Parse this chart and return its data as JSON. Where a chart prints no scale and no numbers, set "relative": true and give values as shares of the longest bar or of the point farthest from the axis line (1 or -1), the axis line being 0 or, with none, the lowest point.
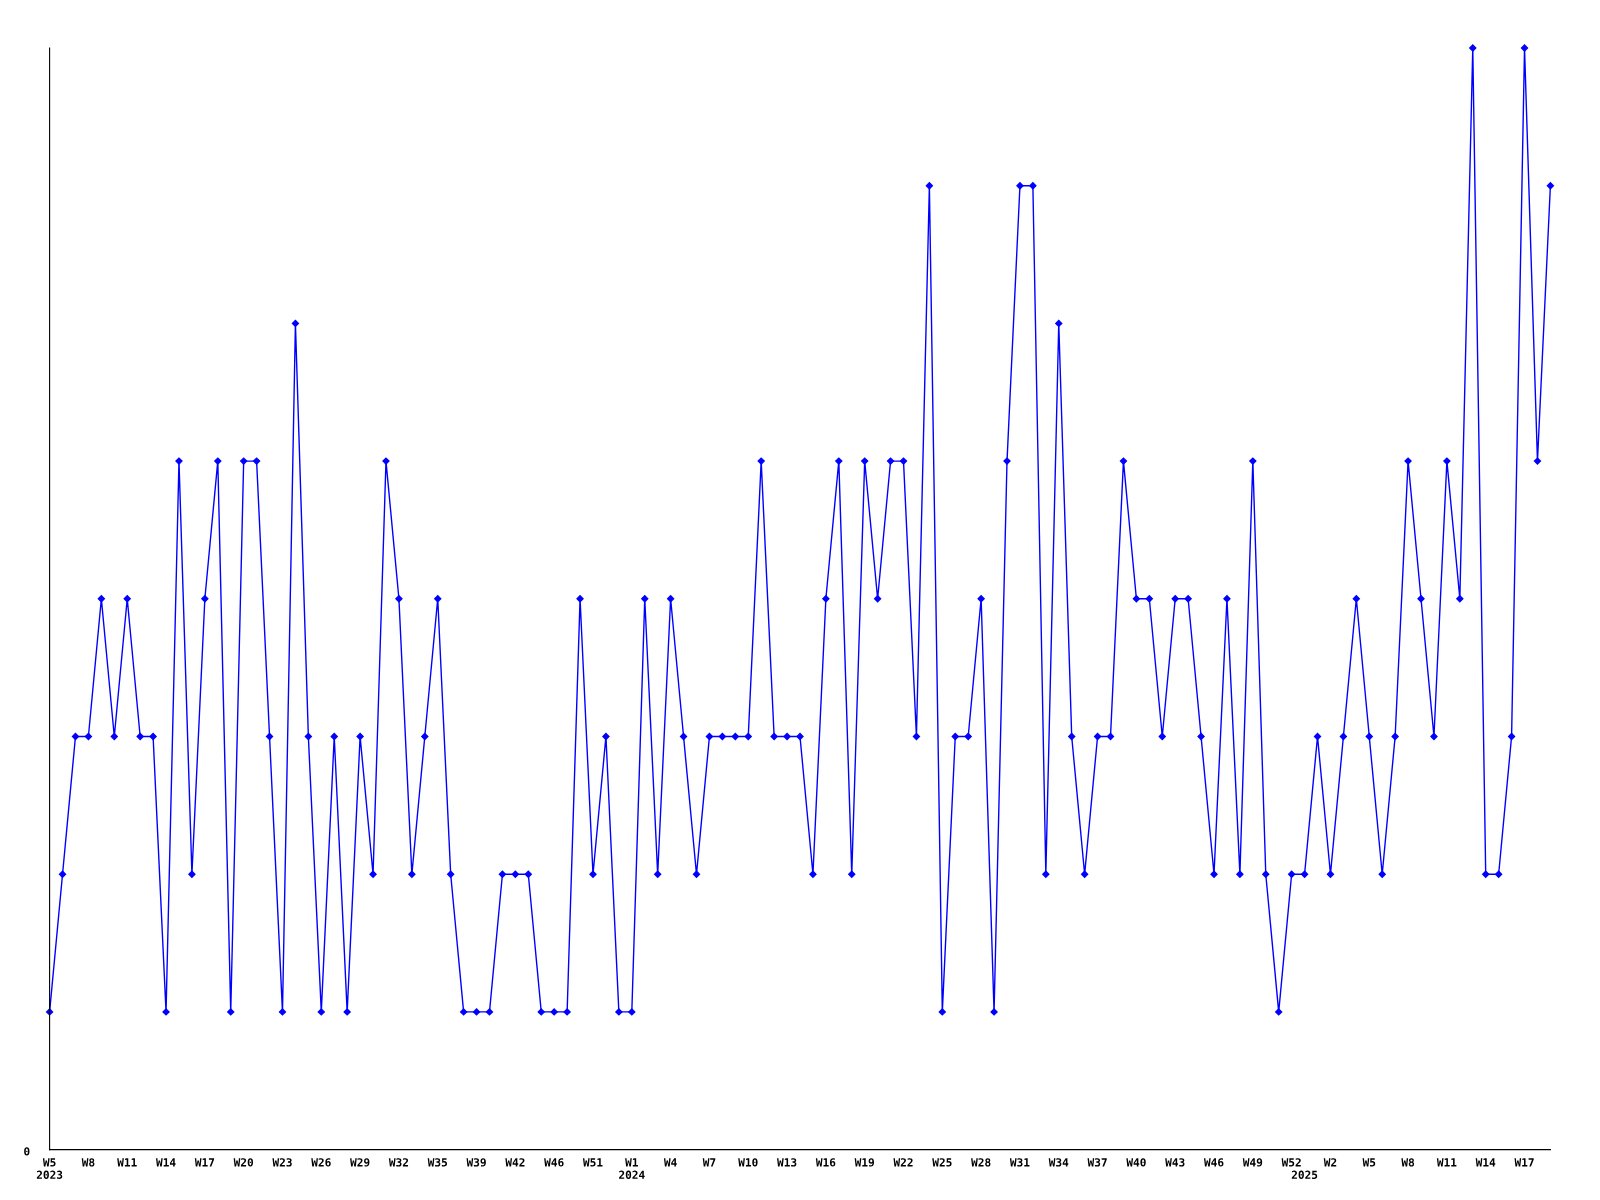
{
  "chart_data": {
    "type": "line",
    "relative": true,
    "marker": "diamond",
    "line_style": "solid",
    "categories": [
      "W5\n2023",
      null,
      null,
      "W8",
      null,
      null,
      "W11",
      null,
      null,
      "W14",
      null,
      null,
      "W17",
      null,
      null,
      "W20",
      null,
      null,
      "W23",
      null,
      null,
      "W26",
      null,
      null,
      "W29",
      null,
      null,
      "W32",
      null,
      null,
      "W35",
      null,
      null,
      "W39",
      null,
      null,
      "W42",
      null,
      null,
      "W46",
      null,
      null,
      "W51",
      null,
      null,
      "W1\n2024",
      null,
      null,
      "W4",
      null,
      null,
      "W7",
      null,
      null,
      "W10",
      null,
      null,
      "W13",
      null,
      null,
      "W16",
      null,
      null,
      "W19",
      null,
      null,
      "W22",
      null,
      null,
      "W25",
      null,
      null,
      "W28",
      null,
      null,
      "W31",
      null,
      null,
      "W34",
      null,
      null,
      "W37",
      null,
      null,
      "W40",
      null,
      null,
      "W43",
      null,
      null,
      "W46",
      null,
      null,
      "W49",
      null,
      null,
      "W52",
      "\n2025",
      null,
      "W2",
      null,
      null,
      "W5",
      null,
      null,
      "W8",
      null,
      null,
      "W11",
      null,
      null,
      "W14",
      null,
      null,
      "W17",
      null,
      null
    ],
    "series": [
      {
        "color": "#0000ff",
        "values": [
          0.125,
          0.25,
          0.375,
          0.375,
          0.5,
          0.375,
          0.5,
          0.375,
          0.375,
          0.125,
          0.625,
          0.25,
          0.5,
          0.625,
          0.125,
          0.625,
          0.625,
          0.375,
          0.125,
          0.75,
          0.375,
          0.125,
          0.375,
          0.125,
          0.375,
          0.25,
          0.625,
          0.5,
          0.25,
          0.375,
          0.5,
          0.25,
          0.125,
          0.125,
          0.125,
          0.25,
          0.25,
          0.25,
          0.125,
          0.125,
          0.125,
          0.5,
          0.25,
          0.375,
          0.125,
          0.125,
          0.5,
          0.25,
          0.5,
          0.375,
          0.25,
          0.375,
          0.375,
          0.375,
          0.375,
          0.625,
          0.375,
          0.375,
          0.375,
          0.25,
          0.5,
          0.625,
          0.25,
          0.625,
          0.5,
          0.625,
          0.625,
          0.375,
          0.875,
          0.125,
          0.375,
          0.375,
          0.5,
          0.125,
          0.625,
          0.875,
          0.875,
          0.25,
          0.75,
          0.375,
          0.25,
          0.375,
          0.375,
          0.625,
          0.5,
          0.5,
          0.375,
          0.5,
          0.5,
          0.375,
          0.25,
          0.5,
          0.25,
          0.625,
          0.25,
          0.125,
          0.25,
          0.25,
          0.375,
          0.25,
          0.375,
          0.5,
          0.375,
          0.25,
          0.375,
          0.625,
          0.5,
          0.375,
          0.625,
          0.5,
          1,
          0.25,
          0.25,
          0.375,
          1,
          0.625,
          0.875
        ]
      }
    ],
    "annotations": [
      "0"
    ]
  }
}
